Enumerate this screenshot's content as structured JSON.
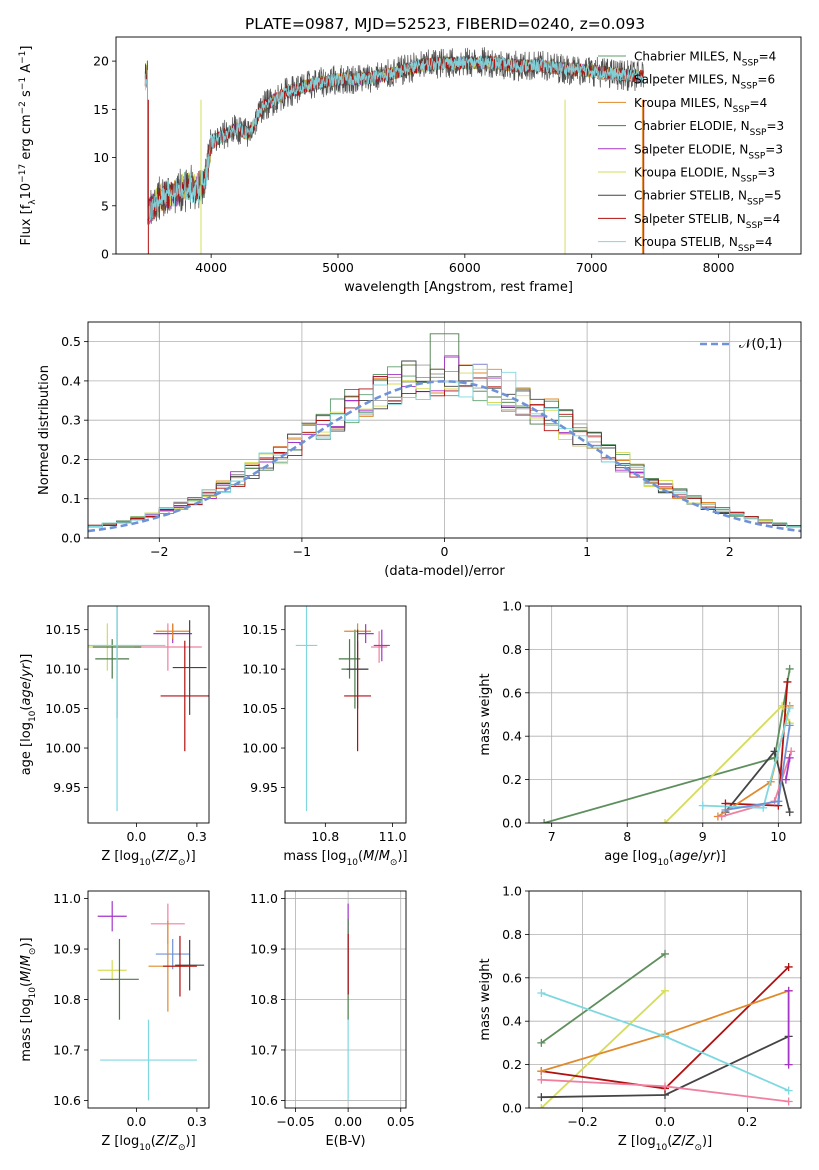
{
  "page": {
    "title": "PLATE=0987, MJD=52523, FIBERID=0240, z=0.093"
  },
  "chart_data": [
    {
      "id": "spectrum",
      "type": "line",
      "title": "PLATE=0987, MJD=52523, FIBERID=0240, z=0.093",
      "xlabel": "wavelength [Angstrom, rest frame]",
      "ylabel": "Flux [f_λ 10^-17 erg cm^-2 s^-1 A^-1]",
      "xlim": [
        3250,
        8650
      ],
      "ylim": [
        0,
        22.5
      ],
      "xticks": [
        4000,
        5000,
        6000,
        7000,
        8000
      ],
      "yticks": [
        0,
        5,
        10,
        15,
        20
      ],
      "grid": false,
      "legend": "right",
      "continuum": {
        "x": [
          3500,
          3600,
          3700,
          3800,
          3900,
          3950,
          4000,
          4100,
          4200,
          4300,
          4400,
          4600,
          4800,
          5000,
          5200,
          5400,
          5600,
          5800,
          6000,
          6200,
          6400,
          6600,
          6800,
          7000,
          7200,
          7400
        ],
        "y": [
          4.2,
          5.8,
          6.2,
          7.0,
          6.9,
          7.5,
          11.5,
          12.3,
          13.0,
          12.4,
          15.2,
          16.8,
          17.6,
          18.1,
          18.2,
          18.6,
          19.4,
          19.8,
          19.8,
          19.9,
          19.5,
          19.5,
          19.2,
          19.0,
          18.6,
          18.4
        ]
      },
      "series": [
        {
          "name": "Chabrier MILES",
          "nssp": "4",
          "color": "#5f9e6e"
        },
        {
          "name": "Salpeter MILES",
          "nssp": "6",
          "color": "#9e9e9e"
        },
        {
          "name": "Kroupa MILES",
          "nssp": "4",
          "color": "#e08a2c"
        },
        {
          "name": "Chabrier ELODIE",
          "nssp": "3",
          "color": "#4a7a4a"
        },
        {
          "name": "Salpeter ELODIE",
          "nssp": "3",
          "color": "#a335c7"
        },
        {
          "name": "Kroupa ELODIE",
          "nssp": "3",
          "color": "#d6dc5a"
        },
        {
          "name": "Chabrier STELIB",
          "nssp": "5",
          "color": "#444444"
        },
        {
          "name": "Salpeter STELIB",
          "nssp": "4",
          "color": "#b01010"
        },
        {
          "name": "Kroupa STELIB",
          "nssp": "4",
          "color": "#7fd8e0"
        }
      ]
    },
    {
      "id": "residuals",
      "type": "line",
      "xlabel": "(data-model)/error",
      "ylabel": "Normed distribution",
      "xlim": [
        -2.5,
        2.5
      ],
      "ylim": [
        0,
        0.55
      ],
      "xticks": [
        -2,
        -1,
        0,
        1,
        2
      ],
      "yticks": [
        0.0,
        0.1,
        0.2,
        0.3,
        0.4,
        0.5
      ],
      "grid": true,
      "legend": "top-right",
      "reference": {
        "name": "𝒩(0,1)",
        "color": "#6f93d6"
      },
      "bin_width": 0.1
    },
    {
      "id": "age_vs_Z",
      "type": "scatter",
      "xlabel": "Z [log10(Z/Z⊙)]",
      "ylabel": "age [log10(age/yr)]",
      "xlim": [
        -0.2,
        0.3
      ],
      "ylim": [
        9.905,
        10.18
      ],
      "xticks": [
        0.0,
        0.25
      ],
      "yticks": [
        9.95,
        10.0,
        10.05,
        10.1,
        10.15
      ],
      "grid": false,
      "points": [
        {
          "x": -0.12,
          "xerr": 0.14,
          "y": 10.128,
          "yerr": 0.03,
          "color": "#d6dc5a"
        },
        {
          "x": 0.13,
          "xerr": 0.14,
          "y": 10.128,
          "yerr": 0.03,
          "color": "#f080a0"
        },
        {
          "x": -0.1,
          "xerr": 0.07,
          "y": 10.113,
          "yerr": 0.025,
          "color": "#4a7a4a"
        },
        {
          "x": -0.08,
          "xerr": 0.1,
          "y": 10.128,
          "yerr": 0.09,
          "color": "#4a7a4a"
        },
        {
          "x": 0.15,
          "xerr": 0.08,
          "y": 10.145,
          "yerr": 0.012,
          "color": "#a335c7"
        },
        {
          "x": 0.15,
          "xerr": 0.07,
          "y": 10.148,
          "yerr": 0.01,
          "color": "#e08a2c"
        },
        {
          "x": 0.22,
          "xerr": 0.07,
          "y": 10.102,
          "yerr": 0.06,
          "color": "#444444"
        },
        {
          "x": 0.2,
          "xerr": 0.1,
          "y": 10.066,
          "yerr": 0.07,
          "color": "#b01010"
        },
        {
          "x": -0.08,
          "xerr": 0.2,
          "y": 10.13,
          "yerr": 0.21,
          "color": "#7fd8e0"
        }
      ]
    },
    {
      "id": "age_vs_mass",
      "type": "scatter",
      "xlabel": "mass [log10(M/M⊙)]",
      "ylabel": "",
      "xlim": [
        10.6,
        11.05
      ],
      "ylim": [
        9.905,
        10.18
      ],
      "xticks": [
        10.75,
        11.0
      ],
      "yticks": [
        9.95,
        10.0,
        10.05,
        10.1,
        10.15
      ],
      "grid": false,
      "points": [
        {
          "x": 10.68,
          "xerr": 0.04,
          "y": 10.13,
          "yerr": 0.21,
          "color": "#7fd8e0"
        },
        {
          "x": 10.84,
          "xerr": 0.04,
          "y": 10.113,
          "yerr": 0.025,
          "color": "#4a7a4a"
        },
        {
          "x": 10.86,
          "xerr": 0.05,
          "y": 10.1,
          "yerr": 0.05,
          "color": "#4a7a4a"
        },
        {
          "x": 10.87,
          "xerr": 0.05,
          "y": 10.148,
          "yerr": 0.01,
          "color": "#e08a2c"
        },
        {
          "x": 10.87,
          "xerr": 0.04,
          "y": 10.1,
          "yerr": 0.05,
          "color": "#444444"
        },
        {
          "x": 10.87,
          "xerr": 0.05,
          "y": 10.066,
          "yerr": 0.07,
          "color": "#b01010"
        },
        {
          "x": 10.9,
          "xerr": 0.03,
          "y": 10.145,
          "yerr": 0.012,
          "color": "#a335c7"
        },
        {
          "x": 10.95,
          "xerr": 0.03,
          "y": 10.128,
          "yerr": 0.02,
          "color": "#f080a0"
        },
        {
          "x": 10.96,
          "xerr": 0.03,
          "y": 10.13,
          "yerr": 0.02,
          "color": "#a335c7"
        }
      ]
    },
    {
      "id": "weight_vs_age",
      "type": "line",
      "xlabel": "age [log10(age/yr)]",
      "ylabel": "mass weight",
      "xlim": [
        6.7,
        10.3
      ],
      "ylim": [
        0,
        1.0
      ],
      "xticks": [
        7,
        8,
        9,
        10
      ],
      "yticks": [
        0.0,
        0.2,
        0.4,
        0.6,
        0.8,
        1.0
      ],
      "grid": true,
      "series": [
        {
          "color": "#5f8f5f",
          "x": [
            6.9,
            9.95,
            10.15
          ],
          "y": [
            0.0,
            0.3,
            0.71
          ]
        },
        {
          "color": "#d6dc5a",
          "x": [
            8.5,
            10.05,
            10.15
          ],
          "y": [
            0.0,
            0.54,
            0.46
          ]
        },
        {
          "color": "#444444",
          "x": [
            9.3,
            9.95,
            10.15
          ],
          "y": [
            0.05,
            0.33,
            0.05
          ]
        },
        {
          "color": "#b01010",
          "x": [
            9.3,
            10.0,
            10.12
          ],
          "y": [
            0.09,
            0.08,
            0.65
          ]
        },
        {
          "color": "#e08a2c",
          "x": [
            9.2,
            9.9,
            10.15
          ],
          "y": [
            0.03,
            0.19,
            0.54
          ]
        },
        {
          "color": "#f080a0",
          "x": [
            9.25,
            9.95,
            10.17
          ],
          "y": [
            0.03,
            0.1,
            0.33
          ]
        },
        {
          "color": "#7fd8e0",
          "x": [
            9.0,
            9.8,
            10.15
          ],
          "y": [
            0.08,
            0.07,
            0.53
          ]
        },
        {
          "color": "#6f93d6",
          "x": [
            9.3,
            10.0,
            10.15
          ],
          "y": [
            0.06,
            0.1,
            0.45
          ]
        },
        {
          "color": "#a335c7",
          "x": [
            10.1,
            10.15
          ],
          "y": [
            0.2,
            0.3
          ]
        }
      ]
    },
    {
      "id": "mass_vs_Z",
      "type": "scatter",
      "xlabel": "Z [log10(Z/Z⊙)]",
      "ylabel": "mass [log10(M/M⊙)]",
      "xlim": [
        -0.2,
        0.3
      ],
      "ylim": [
        10.585,
        11.015
      ],
      "xticks": [
        0.0,
        0.25
      ],
      "yticks": [
        10.6,
        10.7,
        10.8,
        10.9,
        11.0
      ],
      "grid": false,
      "points": [
        {
          "x": -0.1,
          "xerr": 0.06,
          "y": 10.965,
          "yerr": 0.03,
          "color": "#a335c7"
        },
        {
          "x": 0.13,
          "xerr": 0.07,
          "y": 10.95,
          "yerr": 0.04,
          "color": "#f080a0"
        },
        {
          "x": 0.15,
          "xerr": 0.07,
          "y": 10.89,
          "yerr": 0.03,
          "color": "#6f93d6"
        },
        {
          "x": -0.1,
          "xerr": 0.06,
          "y": 10.858,
          "yerr": 0.02,
          "color": "#d6dc5a"
        },
        {
          "x": -0.07,
          "xerr": 0.08,
          "y": 10.84,
          "yerr": 0.08,
          "color": "#4a7a4a"
        },
        {
          "x": 0.13,
          "xerr": 0.08,
          "y": 10.866,
          "yerr": 0.09,
          "color": "#e08a2c"
        },
        {
          "x": 0.22,
          "xerr": 0.06,
          "y": 10.868,
          "yerr": 0.05,
          "color": "#444444"
        },
        {
          "x": 0.18,
          "xerr": 0.07,
          "y": 10.866,
          "yerr": 0.06,
          "color": "#b01010"
        },
        {
          "x": 0.05,
          "xerr": 0.2,
          "y": 10.68,
          "yerr": 0.08,
          "color": "#7fd8e0"
        }
      ]
    },
    {
      "id": "mass_vs_ebv",
      "type": "scatter",
      "xlabel": "E(B-V)",
      "ylabel": "",
      "xlim": [
        -0.06,
        0.055
      ],
      "ylim": [
        10.585,
        11.015
      ],
      "xticks": [
        -0.05,
        0.0,
        0.05
      ],
      "yticks": [
        10.6,
        10.7,
        10.8,
        10.9,
        11.0
      ],
      "grid": true,
      "points": [
        {
          "x": 0.0,
          "y": 10.9,
          "yerr": 0.09,
          "color": "#a335c7"
        },
        {
          "x": 0.0,
          "y": 10.86,
          "yerr": 0.1,
          "color": "#4a7a4a"
        },
        {
          "x": 0.0,
          "y": 10.87,
          "yerr": 0.06,
          "color": "#b01010"
        },
        {
          "x": 0.0,
          "y": 10.68,
          "yerr": 0.08,
          "color": "#7fd8e0"
        }
      ]
    },
    {
      "id": "weight_vs_Z",
      "type": "line",
      "xlabel": "Z [log10(Z/Z⊙)]",
      "ylabel": "mass weight",
      "xlim": [
        -0.33,
        0.33
      ],
      "ylim": [
        0,
        1.0
      ],
      "xticks": [
        -0.2,
        0.0,
        0.2
      ],
      "yticks": [
        0.0,
        0.2,
        0.4,
        0.6,
        0.8,
        1.0
      ],
      "grid": true,
      "series": [
        {
          "color": "#5f8f5f",
          "x": [
            -0.3,
            0.0
          ],
          "y": [
            0.3,
            0.71
          ]
        },
        {
          "color": "#d6dc5a",
          "x": [
            -0.3,
            0.0
          ],
          "y": [
            0.0,
            0.54
          ]
        },
        {
          "color": "#444444",
          "x": [
            -0.3,
            0.0,
            0.3
          ],
          "y": [
            0.05,
            0.06,
            0.33
          ]
        },
        {
          "color": "#b01010",
          "x": [
            -0.3,
            0.0,
            0.3
          ],
          "y": [
            0.17,
            0.09,
            0.65
          ]
        },
        {
          "color": "#e08a2c",
          "x": [
            -0.3,
            0.0,
            0.3
          ],
          "y": [
            0.17,
            0.34,
            0.54
          ]
        },
        {
          "color": "#f080a0",
          "x": [
            -0.3,
            0.0,
            0.3
          ],
          "y": [
            0.13,
            0.1,
            0.03
          ]
        },
        {
          "color": "#7fd8e0",
          "x": [
            -0.3,
            0.0,
            0.3
          ],
          "y": [
            0.53,
            0.33,
            0.08
          ]
        },
        {
          "color": "#a335c7",
          "x": [
            0.3,
            0.3
          ],
          "y": [
            0.2,
            0.54
          ]
        }
      ]
    }
  ]
}
